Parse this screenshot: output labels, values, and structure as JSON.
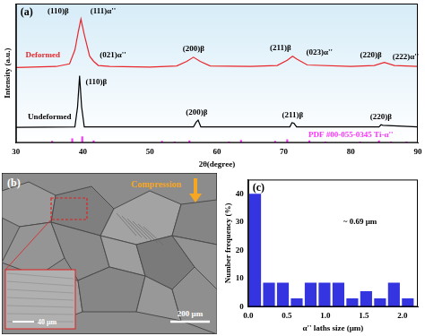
{
  "chart_data": [
    {
      "type": "line",
      "title": "(a)",
      "x_label": "2θ(degree)",
      "y_label": "Intensity (a.u.)",
      "xlim": [
        30,
        90
      ],
      "xticks": [
        30,
        40,
        50,
        60,
        70,
        80,
        90
      ],
      "ylim": [
        0,
        270
      ],
      "tick_labels": "x",
      "grid": false,
      "series": [
        {
          "color": "#e8262b",
          "x": [
            30,
            36,
            38,
            38.8,
            39.3,
            39.7,
            40.2,
            41,
            41.6,
            42.3,
            44,
            50,
            54,
            55.5,
            56.5,
            57.5,
            59,
            65,
            69,
            70.5,
            71.3,
            72,
            73.5,
            80,
            83.5,
            85,
            86.5,
            90
          ],
          "values": [
            146,
            148,
            153,
            180,
            215,
            240,
            210,
            168,
            158,
            150,
            148,
            147,
            149,
            158,
            166,
            158,
            149,
            148,
            150,
            160,
            168,
            162,
            151,
            148,
            150,
            156,
            150,
            148
          ]
        },
        {
          "color": "#000000",
          "x": [
            30,
            38.8,
            39.2,
            39.5,
            39.8,
            40.2,
            56.5,
            56.9,
            57.2,
            57.6,
            70.9,
            71.2,
            71.5,
            71.9,
            84.2,
            84.5,
            84.8,
            90
          ],
          "values": [
            30,
            31,
            70,
            130,
            70,
            31,
            31,
            40,
            44,
            31,
            31,
            39,
            38,
            31,
            31,
            35,
            34,
            31
          ]
        },
        {
          "type": "bar",
          "color": "#ff33ff",
          "x": [
            35.4,
            38.4,
            39.9,
            41.6,
            51.8,
            53.7,
            55.9,
            61.8,
            63.6,
            68.7,
            70.5,
            73.8,
            76.2,
            81.4,
            84.2,
            86,
            88.3
          ],
          "values": [
            3,
            8,
            12,
            4,
            3,
            2,
            4,
            2,
            5,
            3,
            6,
            4,
            2,
            2,
            4,
            2,
            2
          ]
        }
      ],
      "annotations": [
        {
          "text": "Deformed",
          "x": 34,
          "y": 170,
          "color": "#e8262b"
        },
        {
          "text": "(110)β",
          "x": 36.3,
          "y": 255,
          "color": "#000000"
        },
        {
          "text": "(111)α''",
          "x": 43,
          "y": 255,
          "color": "#000000"
        },
        {
          "text": "(021)α''",
          "x": 44.5,
          "y": 170,
          "color": "#000000"
        },
        {
          "text": "(200)β",
          "x": 56.5,
          "y": 182,
          "color": "#000000"
        },
        {
          "text": "(211)β",
          "x": 69.5,
          "y": 183,
          "color": "#000000"
        },
        {
          "text": "(023)α''",
          "x": 75.3,
          "y": 175,
          "color": "#000000"
        },
        {
          "text": "(220)β",
          "x": 83,
          "y": 170,
          "color": "#000000"
        },
        {
          "text": "(222)α''",
          "x": 88.2,
          "y": 166,
          "color": "#000000"
        },
        {
          "text": "Undeformed",
          "x": 35,
          "y": 50,
          "color": "#000000"
        },
        {
          "text": "(110)β",
          "x": 42,
          "y": 118,
          "color": "#000000"
        },
        {
          "text": "(200)β",
          "x": 57,
          "y": 58,
          "color": "#000000"
        },
        {
          "text": "(211)β",
          "x": 71.3,
          "y": 54,
          "color": "#000000"
        },
        {
          "text": "(220)β",
          "x": 84.5,
          "y": 50,
          "color": "#000000"
        },
        {
          "text": "PDF #00-055-0345 Ti-α''",
          "x": 80,
          "y": 16,
          "color": "#ff33ff"
        }
      ]
    },
    {
      "type": "histogram",
      "title": "(c)",
      "x_label": "α'' laths size (μm)",
      "y_label": "Number frequency (%)",
      "bins": [
        0,
        0.18,
        0.36,
        0.54,
        0.72,
        0.9,
        1.08,
        1.26,
        1.44,
        1.62,
        1.8,
        1.98,
        2.16
      ],
      "values": [
        40,
        8.5,
        8.5,
        3,
        8.5,
        8.5,
        8.5,
        3,
        5.5,
        3,
        8.5,
        3
      ],
      "color": "#3434e0",
      "xlim": [
        0,
        2.2
      ],
      "xticks": [
        {
          "value": 0,
          "label": "0.0"
        },
        {
          "value": 0.5,
          "label": "0.5"
        },
        {
          "value": 1,
          "label": "1.0"
        },
        {
          "value": 1.5,
          "label": "1.5"
        },
        {
          "value": 2,
          "label": "2.0"
        }
      ],
      "ylim": [
        0,
        45
      ],
      "yticks": [
        0,
        10,
        20,
        30,
        40
      ],
      "grid": false,
      "annotations": [
        {
          "text": "~ 0.69 μm",
          "x": 1.45,
          "y": 30,
          "color": "#000000"
        }
      ]
    }
  ],
  "micrograph": {
    "title": "(b)",
    "arrow_label": "Compression",
    "scale_bar": "200 μm",
    "inset_scale_bar": "40 μm"
  }
}
